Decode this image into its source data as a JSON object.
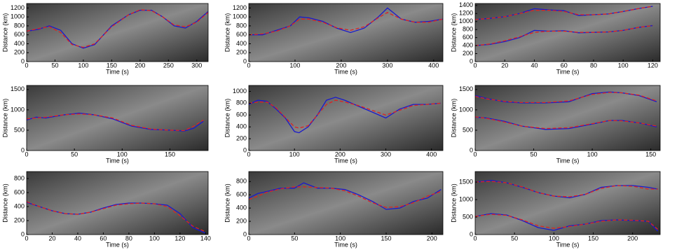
{
  "chart_data": [
    {
      "type": "line",
      "xlabel": "Time (s)",
      "ylabel": "Distance (km)",
      "xlim": [
        0,
        320
      ],
      "ylim": [
        0,
        1300
      ],
      "xticks": [
        0,
        50,
        100,
        150,
        200,
        250,
        300
      ],
      "yticks": [
        0,
        200,
        400,
        600,
        800,
        1000,
        1200
      ],
      "x": [
        0,
        20,
        40,
        60,
        80,
        100,
        120,
        150,
        180,
        200,
        220,
        240,
        260,
        280,
        300,
        320
      ],
      "series": [
        {
          "color": "#1a1acc",
          "values": [
            680,
            720,
            800,
            700,
            400,
            300,
            380,
            800,
            1050,
            1150,
            1150,
            1000,
            800,
            750,
            900,
            1120
          ]
        },
        {
          "color": "#dd2222",
          "values": [
            680,
            740,
            780,
            650,
            380,
            320,
            400,
            780,
            1050,
            1160,
            1140,
            1000,
            820,
            780,
            880,
            1100
          ]
        }
      ]
    },
    {
      "type": "line",
      "xlabel": "Time (s)",
      "ylabel": "Distance (km)",
      "xlim": [
        0,
        420
      ],
      "ylim": [
        0,
        1300
      ],
      "xticks": [
        0,
        100,
        200,
        300,
        400
      ],
      "yticks": [
        0,
        200,
        400,
        600,
        800,
        1000,
        1200
      ],
      "x": [
        0,
        30,
        60,
        90,
        110,
        130,
        160,
        190,
        220,
        250,
        280,
        300,
        330,
        360,
        390,
        420
      ],
      "series": [
        {
          "color": "#1a1acc",
          "values": [
            600,
            600,
            700,
            800,
            1000,
            980,
            900,
            750,
            650,
            750,
            1000,
            1200,
            950,
            880,
            900,
            950
          ]
        },
        {
          "color": "#dd2222",
          "values": [
            600,
            620,
            680,
            800,
            950,
            950,
            880,
            760,
            700,
            780,
            980,
            1100,
            950,
            880,
            880,
            950
          ]
        }
      ]
    },
    {
      "type": "line",
      "xlabel": "Time (s)",
      "ylabel": "Distance (km)",
      "xlim": [
        0,
        125
      ],
      "ylim": [
        0,
        1450
      ],
      "xticks": [
        0,
        20,
        40,
        60,
        80,
        100,
        120
      ],
      "yticks": [
        0,
        200,
        400,
        600,
        800,
        1000,
        1200,
        1400
      ],
      "x": [
        0,
        10,
        20,
        30,
        40,
        50,
        60,
        70,
        80,
        90,
        100,
        110,
        120
      ],
      "series": [
        {
          "color": "#1a1acc",
          "values": [
            1050,
            1080,
            1120,
            1200,
            1320,
            1290,
            1270,
            1150,
            1170,
            1190,
            1250,
            1320,
            1380
          ]
        },
        {
          "color": "#dd2222",
          "values": [
            1050,
            1080,
            1120,
            1200,
            1280,
            1280,
            1250,
            1170,
            1170,
            1190,
            1250,
            1320,
            1380
          ]
        },
        {
          "color": "#1a1acc",
          "values": [
            400,
            430,
            500,
            600,
            780,
            760,
            770,
            720,
            730,
            740,
            780,
            850,
            900
          ]
        },
        {
          "color": "#dd2222",
          "values": [
            400,
            440,
            520,
            620,
            730,
            760,
            760,
            730,
            730,
            740,
            780,
            850,
            900
          ]
        }
      ]
    },
    {
      "type": "line",
      "xlabel": "Time (s)",
      "ylabel": "Distance (km)",
      "xlim": [
        0,
        190
      ],
      "ylim": [
        0,
        1600
      ],
      "xticks": [
        0,
        50,
        100,
        150
      ],
      "yticks": [
        0,
        500,
        1000,
        1500
      ],
      "x": [
        0,
        10,
        20,
        40,
        55,
        70,
        90,
        110,
        130,
        150,
        165,
        175,
        185
      ],
      "series": [
        {
          "color": "#1a1acc",
          "values": [
            750,
            820,
            800,
            880,
            920,
            880,
            780,
            600,
            520,
            500,
            480,
            550,
            720
          ]
        },
        {
          "color": "#dd2222",
          "values": [
            780,
            800,
            820,
            880,
            900,
            880,
            800,
            620,
            530,
            500,
            490,
            600,
            750
          ]
        }
      ]
    },
    {
      "type": "line",
      "xlabel": "Time (s)",
      "ylabel": "Distance (km)",
      "xlim": [
        0,
        425
      ],
      "ylim": [
        0,
        1100
      ],
      "xticks": [
        0,
        100,
        200,
        300,
        400
      ],
      "yticks": [
        0,
        200,
        400,
        600,
        800,
        1000
      ],
      "x": [
        0,
        20,
        40,
        60,
        80,
        100,
        110,
        130,
        150,
        170,
        190,
        210,
        240,
        270,
        300,
        330,
        360,
        390,
        420
      ],
      "series": [
        {
          "color": "#1a1acc",
          "values": [
            780,
            850,
            830,
            700,
            550,
            320,
            300,
            400,
            600,
            850,
            900,
            850,
            750,
            650,
            550,
            700,
            780,
            780,
            800
          ]
        },
        {
          "color": "#dd2222",
          "values": [
            800,
            820,
            820,
            720,
            560,
            400,
            380,
            420,
            600,
            780,
            850,
            820,
            760,
            680,
            600,
            680,
            760,
            780,
            800
          ]
        }
      ]
    },
    {
      "type": "line",
      "xlabel": "Time (s)",
      "ylabel": "Distance (km)",
      "xlim": [
        0,
        158
      ],
      "ylim": [
        0,
        1600
      ],
      "xticks": [
        0,
        50,
        100,
        150
      ],
      "yticks": [
        0,
        500,
        1000,
        1500
      ],
      "x": [
        0,
        10,
        25,
        40,
        60,
        80,
        100,
        115,
        125,
        140,
        155
      ],
      "series": [
        {
          "color": "#1a1acc",
          "values": [
            1350,
            1280,
            1200,
            1170,
            1170,
            1200,
            1400,
            1440,
            1420,
            1350,
            1200
          ]
        },
        {
          "color": "#dd2222",
          "values": [
            1330,
            1270,
            1210,
            1180,
            1180,
            1220,
            1380,
            1430,
            1420,
            1360,
            1220
          ]
        },
        {
          "color": "#1a1acc",
          "values": [
            820,
            800,
            720,
            600,
            520,
            540,
            650,
            740,
            740,
            680,
            580
          ]
        },
        {
          "color": "#dd2222",
          "values": [
            830,
            790,
            700,
            600,
            540,
            560,
            660,
            740,
            730,
            680,
            600
          ]
        }
      ]
    },
    {
      "type": "line",
      "xlabel": "Time (s)",
      "ylabel": "Distance (km)",
      "xlim": [
        0,
        142
      ],
      "ylim": [
        0,
        900
      ],
      "xticks": [
        0,
        20,
        40,
        60,
        80,
        100,
        120,
        140
      ],
      "yticks": [
        0,
        200,
        400,
        600,
        800
      ],
      "x": [
        0,
        10,
        20,
        30,
        40,
        50,
        60,
        70,
        80,
        90,
        100,
        110,
        120,
        130,
        140
      ],
      "series": [
        {
          "color": "#1a1acc",
          "values": [
            460,
            400,
            340,
            300,
            290,
            320,
            380,
            430,
            450,
            450,
            440,
            420,
            300,
            100,
            20
          ]
        },
        {
          "color": "#dd2222",
          "values": [
            470,
            400,
            340,
            300,
            290,
            320,
            370,
            420,
            440,
            450,
            440,
            400,
            270,
            120,
            40
          ]
        }
      ]
    },
    {
      "type": "line",
      "xlabel": "Time (s)",
      "ylabel": "Distance (km)",
      "xlim": [
        0,
        212
      ],
      "ylim": [
        0,
        950
      ],
      "xticks": [
        0,
        50,
        100,
        150,
        200
      ],
      "yticks": [
        0,
        200,
        400,
        600,
        800
      ],
      "x": [
        0,
        10,
        20,
        35,
        50,
        60,
        75,
        90,
        105,
        120,
        135,
        150,
        165,
        180,
        195,
        210
      ],
      "series": [
        {
          "color": "#1a1acc",
          "values": [
            550,
            620,
            650,
            700,
            700,
            780,
            700,
            700,
            680,
            600,
            500,
            380,
            400,
            500,
            550,
            680
          ]
        },
        {
          "color": "#dd2222",
          "values": [
            530,
            580,
            640,
            690,
            720,
            720,
            710,
            700,
            660,
            580,
            480,
            410,
            420,
            480,
            580,
            650
          ]
        }
      ]
    },
    {
      "type": "line",
      "xlabel": "Time (s)",
      "ylabel": "Distance (km)",
      "xlim": [
        0,
        235
      ],
      "ylim": [
        0,
        1800
      ],
      "xticks": [
        0,
        50,
        100,
        150,
        200
      ],
      "yticks": [
        0,
        500,
        1000,
        1500
      ],
      "x": [
        0,
        20,
        40,
        60,
        80,
        100,
        120,
        140,
        160,
        180,
        200,
        220,
        232
      ],
      "series": [
        {
          "color": "#1a1acc",
          "values": [
            1500,
            1550,
            1480,
            1350,
            1200,
            1100,
            1050,
            1150,
            1350,
            1400,
            1400,
            1350,
            1300
          ]
        },
        {
          "color": "#dd2222",
          "values": [
            1500,
            1520,
            1480,
            1360,
            1200,
            1100,
            1080,
            1150,
            1320,
            1400,
            1380,
            1300,
            1300
          ]
        },
        {
          "color": "#1a1acc",
          "values": [
            520,
            600,
            560,
            400,
            200,
            120,
            250,
            300,
            400,
            420,
            400,
            380,
            100
          ]
        },
        {
          "color": "#dd2222",
          "values": [
            520,
            580,
            550,
            420,
            250,
            180,
            230,
            300,
            380,
            420,
            410,
            380,
            150
          ]
        }
      ]
    }
  ]
}
